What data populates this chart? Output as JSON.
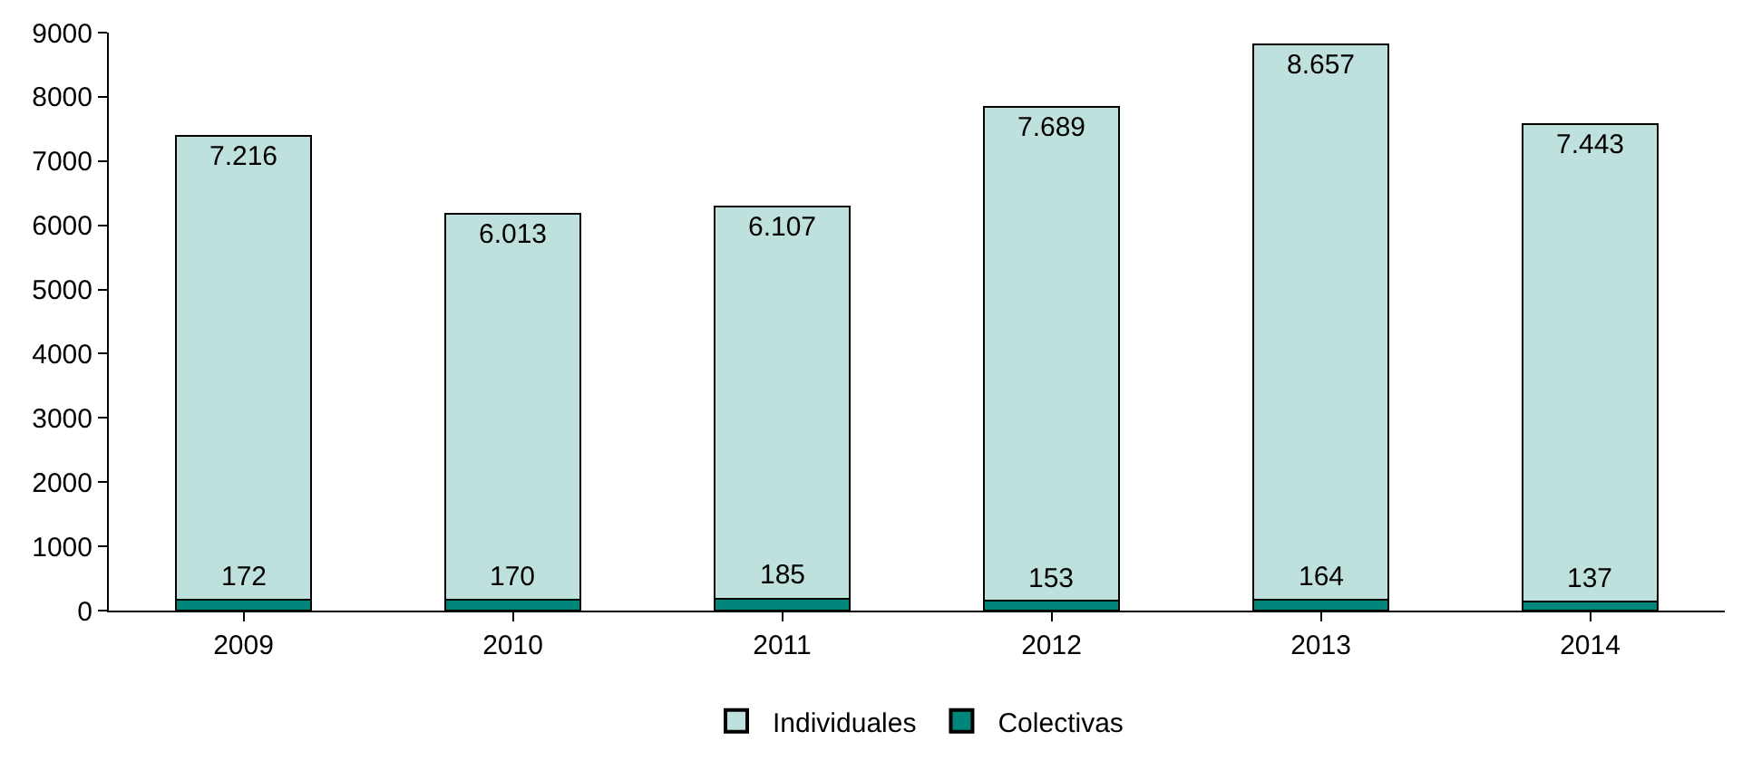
{
  "chart_data": {
    "type": "bar",
    "stacked": true,
    "categories": [
      "2009",
      "2010",
      "2011",
      "2012",
      "2013",
      "2014"
    ],
    "series": [
      {
        "name": "Colectivas",
        "color": "#00857a",
        "values": [
          172,
          170,
          185,
          153,
          164,
          137
        ],
        "value_labels": [
          "172",
          "170",
          "185",
          "153",
          "164",
          "137"
        ]
      },
      {
        "name": "Individuales",
        "color": "#bfe1dd",
        "values": [
          7216,
          6013,
          6107,
          7689,
          8657,
          7443
        ],
        "value_labels": [
          "7.216",
          "6.013",
          "6.107",
          "7.689",
          "8.657",
          "7.443"
        ]
      }
    ],
    "ylim": [
      0,
      9000
    ],
    "yticks": [
      0,
      1000,
      2000,
      3000,
      4000,
      5000,
      6000,
      7000,
      8000,
      9000
    ],
    "grid": false,
    "legend": "bottom"
  }
}
